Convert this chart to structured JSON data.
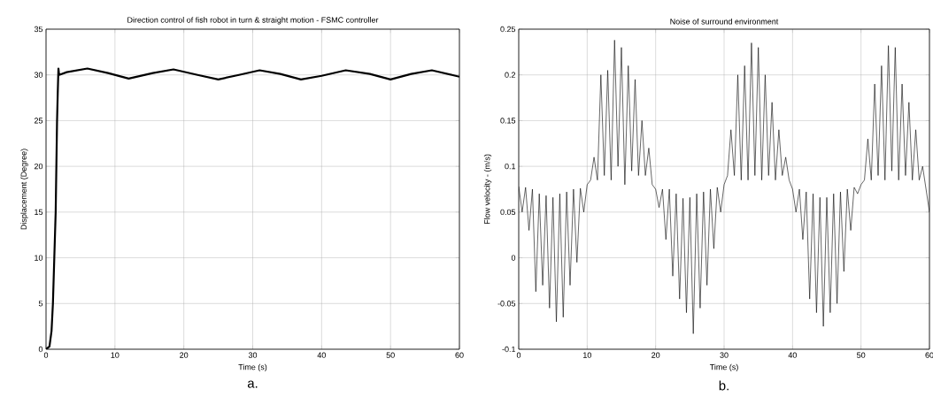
{
  "chart_data": [
    {
      "type": "line",
      "title": "Direction control of fish robot in turn & straight motion - FSMC controller",
      "xlabel": "Time (s)",
      "ylabel": "Displacement (Degree)",
      "annotations": [
        "a."
      ],
      "grid": true,
      "xlim": [
        0,
        60
      ],
      "ylim": [
        0,
        35
      ],
      "xticks": [
        0,
        10,
        20,
        30,
        40,
        50,
        60
      ],
      "yticks": [
        0,
        5,
        10,
        15,
        20,
        25,
        30,
        35
      ],
      "x": [
        0,
        0.5,
        0.8,
        1.0,
        1.2,
        1.4,
        1.5,
        1.6,
        1.7,
        1.8,
        1.9,
        3,
        6,
        9,
        12,
        15.5,
        18.5,
        22,
        25,
        28,
        31,
        34,
        37,
        40,
        43.5,
        47,
        50,
        53,
        56,
        60
      ],
      "series": [
        {
          "color": "#000000",
          "values": [
            0,
            0.3,
            2,
            5,
            10,
            15,
            20,
            25,
            28,
            30.7,
            30,
            30.3,
            30.7,
            30.2,
            29.6,
            30.2,
            30.6,
            30,
            29.5,
            30,
            30.5,
            30.1,
            29.5,
            29.9,
            30.5,
            30.1,
            29.5,
            30.1,
            30.5,
            29.8
          ]
        }
      ]
    },
    {
      "type": "line",
      "title": "Noise of surround environment",
      "xlabel": "Time (s)",
      "ylabel": "Flow velocity - (m/s)",
      "annotations": [
        "b."
      ],
      "grid": true,
      "xlim": [
        0,
        60
      ],
      "ylim": [
        -0.1,
        0.25
      ],
      "xticks": [
        0,
        10,
        20,
        30,
        40,
        50,
        60
      ],
      "yticks": [
        -0.1,
        -0.05,
        0,
        0.05,
        0.1,
        0.15,
        0.2,
        0.25
      ],
      "x": [
        0,
        0.5,
        1,
        1.5,
        2,
        2.5,
        3,
        3.5,
        4,
        4.5,
        5,
        5.5,
        6,
        6.5,
        7,
        7.5,
        8,
        8.5,
        9,
        9.5,
        10,
        10.5,
        11,
        11.5,
        12,
        12.5,
        13,
        13.5,
        14,
        14.5,
        15,
        15.5,
        16,
        16.5,
        17,
        17.5,
        18,
        18.5,
        19,
        19.5,
        20,
        20.5,
        21,
        21.5,
        22,
        22.5,
        23,
        23.5,
        24,
        24.5,
        25,
        25.5,
        26,
        26.5,
        27,
        27.5,
        28,
        28.5,
        29,
        29.5,
        30,
        30.5,
        31,
        31.5,
        32,
        32.5,
        33,
        33.5,
        34,
        34.5,
        35,
        35.5,
        36,
        36.5,
        37,
        37.5,
        38,
        38.5,
        39,
        39.5,
        40,
        40.5,
        41,
        41.5,
        42,
        42.5,
        43,
        43.5,
        44,
        44.5,
        45,
        45.5,
        46,
        46.5,
        47,
        47.5,
        48,
        48.5,
        49,
        49.5,
        50,
        50.5,
        51,
        51.5,
        52,
        52.5,
        53,
        53.5,
        54,
        54.5,
        55,
        55.5,
        56,
        56.5,
        57,
        57.5,
        58,
        58.5,
        59,
        59.5,
        60
      ],
      "series": [
        {
          "color": "#000000",
          "values": [
            0.078,
            0.05,
            0.077,
            0.03,
            0.075,
            -0.037,
            0.07,
            -0.03,
            0.068,
            -0.055,
            0.066,
            -0.07,
            0.07,
            -0.065,
            0.072,
            -0.03,
            0.075,
            -0.005,
            0.076,
            0.05,
            0.08,
            0.085,
            0.11,
            0.085,
            0.2,
            0.09,
            0.205,
            0.085,
            0.238,
            0.1,
            0.23,
            0.08,
            0.21,
            0.095,
            0.195,
            0.09,
            0.15,
            0.09,
            0.12,
            0.08,
            0.075,
            0.055,
            0.075,
            0.02,
            0.075,
            -0.02,
            0.07,
            -0.045,
            0.065,
            -0.06,
            0.066,
            -0.083,
            0.07,
            -0.055,
            0.072,
            -0.03,
            0.075,
            0.01,
            0.077,
            0.05,
            0.08,
            0.09,
            0.14,
            0.09,
            0.2,
            0.085,
            0.21,
            0.085,
            0.235,
            0.09,
            0.23,
            0.085,
            0.2,
            0.09,
            0.17,
            0.085,
            0.14,
            0.09,
            0.11,
            0.085,
            0.075,
            0.05,
            0.075,
            0.02,
            0.072,
            -0.045,
            0.07,
            -0.06,
            0.066,
            -0.075,
            0.066,
            -0.06,
            0.07,
            -0.05,
            0.072,
            -0.015,
            0.075,
            0.03,
            0.077,
            0.07,
            0.08,
            0.085,
            0.13,
            0.085,
            0.19,
            0.09,
            0.21,
            0.085,
            0.232,
            0.095,
            0.23,
            0.085,
            0.19,
            0.09,
            0.17,
            0.085,
            0.14,
            0.085,
            0.1,
            0.075,
            0.05
          ]
        }
      ]
    }
  ]
}
